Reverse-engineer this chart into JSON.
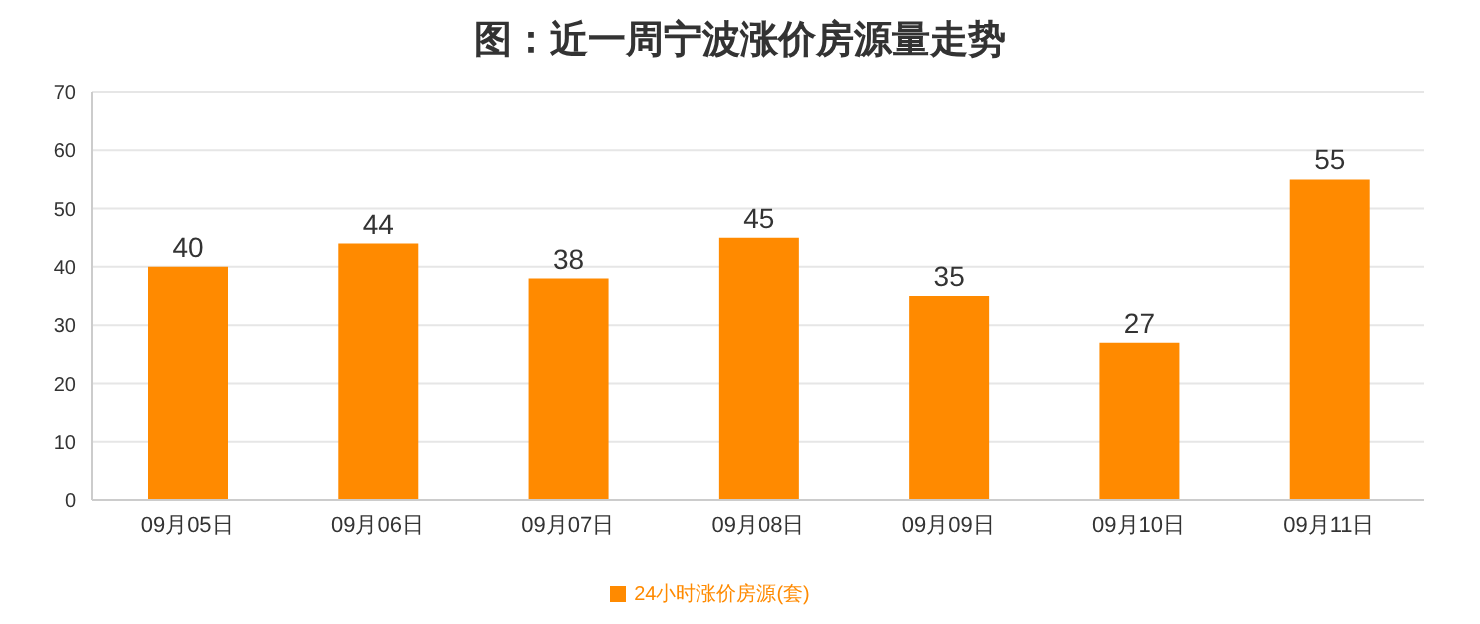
{
  "chart_data": {
    "type": "bar",
    "title": "图：近一周宁波涨价房源量走势",
    "categories": [
      "09月05日",
      "09月06日",
      "09月07日",
      "09月08日",
      "09月09日",
      "09月10日",
      "09月11日"
    ],
    "series": [
      {
        "name": "24小时涨价房源(套)",
        "color": "#ff8a00",
        "values": [
          40,
          44,
          38,
          45,
          35,
          27,
          55
        ]
      }
    ],
    "ylim": [
      0,
      70
    ],
    "yticks": [
      0,
      10,
      20,
      30,
      40,
      50,
      60,
      70
    ],
    "grid": "y",
    "legend": "bottom",
    "data_labels": true
  }
}
